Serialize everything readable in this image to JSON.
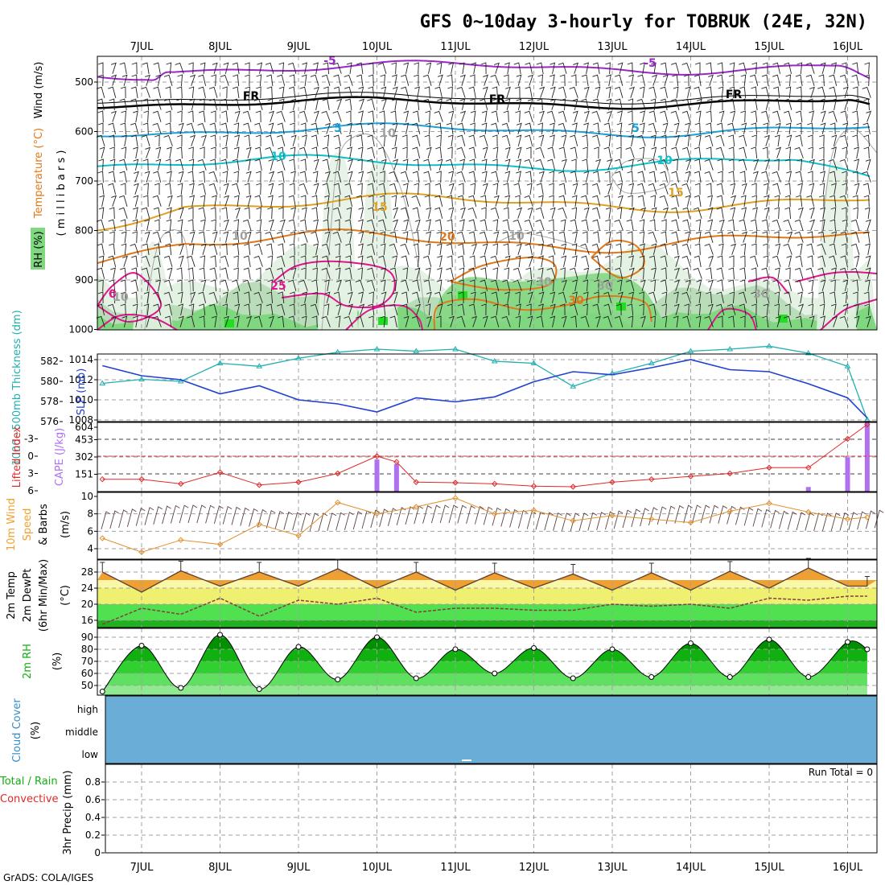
{
  "title": "GFS 0~10day 3-hourly for TOBRUK (24E, 32N)",
  "credit": "GrADS: COLA/IGES",
  "dates": [
    "7JUL",
    "8JUL",
    "9JUL",
    "10JUL",
    "11JUL",
    "12JUL",
    "13JUL",
    "14JUL",
    "15JUL",
    "16JUL"
  ],
  "colors": {
    "rh_light": "#e3f2e3",
    "rh_mid": "#b9ddb9",
    "rh_dark": "#7fd77f",
    "rh_vivid": "#22dd22",
    "temp_m5": "#9a28c8",
    "temp_fr": "#000000",
    "temp_5": "#1ca0d8",
    "temp_10": "#10c0c8",
    "temp_15": "#e0a020",
    "temp_20": "#e07818",
    "temp_25": "#e0148c",
    "thickness": "#20b0b0",
    "slp": "#2040d0",
    "lifted": "#e02828",
    "cape": "#b070f0",
    "wind": "#e09030",
    "temp2m": "#f0a030",
    "dewpt": "#804040",
    "rh2m": "#10b010",
    "cloud": "#6aaed8",
    "grid": "#a0a0a0"
  },
  "panels": {
    "upper": {
      "yaxis_label": "( m i l l i b a r s )",
      "side_rh": "RH (%)",
      "side_temp": "Temperature (°C)",
      "side_wind": "Wind (m/s)",
      "ticks": [
        "500",
        "600",
        "700",
        "800",
        "900",
        "1000"
      ],
      "contour_labels": [
        "-5",
        "-5",
        "FR",
        "FR",
        "FR",
        "5",
        "5",
        "10",
        "10",
        "15",
        "15",
        "20",
        "25",
        "30",
        "10",
        "10",
        "10",
        "30",
        "30",
        "30",
        "0",
        "10"
      ]
    },
    "thickness_slp": {
      "label_thickness": "1000~500mb Thickness (dm)",
      "label_slp": "SLP (mb)",
      "ticks_left": [
        "582",
        "580",
        "578",
        "576"
      ],
      "ticks_right": [
        "1014",
        "1012",
        "1010",
        "1008"
      ]
    },
    "cape_li": {
      "label_li": "Lifted Index",
      "label_cape": "CAPE (J/kg)",
      "ticks_left": [
        "-3",
        "0",
        "3",
        "6"
      ],
      "ticks_right": [
        "604",
        "453",
        "302",
        "151"
      ]
    },
    "wind10m": {
      "label_a": "10m Wind",
      "label_b": "Speed",
      "label_c": "& Barbs",
      "unit": "(m/s)",
      "ticks": [
        "10",
        "8",
        "6",
        "4"
      ]
    },
    "temp2m": {
      "label_a": "2m Temp",
      "label_b": "2m DewPt",
      "label_c": "(6hr Min/Max)",
      "unit": "(°C)",
      "ticks": [
        "28",
        "24",
        "20",
        "16"
      ]
    },
    "rh2m": {
      "label": "2m RH",
      "unit": "(%)",
      "ticks": [
        "90",
        "80",
        "70",
        "60",
        "50"
      ]
    },
    "cloud": {
      "label": "Cloud Cover",
      "unit": "(%)",
      "levels": [
        "high",
        "middle",
        "low"
      ]
    },
    "precip": {
      "label_a": "Total / Rain",
      "label_b": "Convective",
      "label_c": "3hr Precip (mm)",
      "run_total": "Run Total = 0",
      "ticks": [
        "0.8",
        "0.6",
        "0.4",
        "0.2",
        "0"
      ]
    }
  },
  "chart_data": [
    {
      "type": "line",
      "panel": "1000~500mb Thickness and SLP",
      "x": [
        "6JUL 12Z",
        "7JUL 00Z",
        "7JUL 12Z",
        "8JUL 00Z",
        "8JUL 12Z",
        "9JUL 00Z",
        "9JUL 12Z",
        "10JUL 00Z",
        "10JUL 12Z",
        "11JUL 00Z",
        "11JUL 12Z",
        "12JUL 00Z",
        "12JUL 12Z",
        "13JUL 00Z",
        "13JUL 12Z",
        "14JUL 00Z",
        "14JUL 12Z",
        "15JUL 00Z",
        "15JUL 12Z",
        "16JUL 00Z",
        "16JUL 06Z"
      ],
      "series": [
        {
          "name": "1000~500mb Thickness (dm)",
          "unit": "dm",
          "values": [
            579.8,
            580.2,
            580.0,
            581.8,
            581.5,
            582.3,
            582.9,
            583.2,
            583.0,
            583.2,
            582.0,
            581.8,
            579.5,
            580.8,
            581.8,
            583.0,
            583.2,
            583.5,
            582.8,
            581.5,
            576.2
          ]
        },
        {
          "name": "SLP (mb)",
          "unit": "mb",
          "values": [
            1013.4,
            1012.4,
            1012.0,
            1010.6,
            1011.4,
            1010.0,
            1009.6,
            1008.8,
            1010.2,
            1009.8,
            1010.3,
            1011.8,
            1012.8,
            1012.5,
            1013.2,
            1014.0,
            1013.0,
            1012.8,
            1011.6,
            1010.2,
            1008.2
          ]
        }
      ],
      "ylim_thickness": [
        576,
        583.5
      ],
      "ylim_slp": [
        1007.5,
        1014.5
      ]
    },
    {
      "type": "bar",
      "panel": "Lifted Index and CAPE",
      "x": [
        "6JUL 12Z",
        "7JUL 00Z",
        "7JUL 12Z",
        "8JUL 00Z",
        "8JUL 12Z",
        "9JUL 00Z",
        "9JUL 12Z",
        "10JUL 00Z",
        "10JUL 06Z",
        "10JUL 12Z",
        "11JUL 00Z",
        "11JUL 12Z",
        "12JUL 00Z",
        "12JUL 12Z",
        "13JUL 00Z",
        "13JUL 12Z",
        "14JUL 00Z",
        "14JUL 12Z",
        "15JUL 00Z",
        "15JUL 12Z",
        "16JUL 00Z",
        "16JUL 06Z"
      ],
      "series": [
        {
          "name": "Lifted Index",
          "values": [
            4.0,
            4.0,
            4.8,
            2.8,
            5.0,
            4.5,
            3.0,
            0.0,
            1.0,
            4.5,
            4.6,
            4.8,
            5.2,
            5.3,
            4.5,
            4.0,
            3.5,
            3.0,
            2.0,
            2.0,
            -3.0,
            -5.5
          ]
        },
        {
          "name": "CAPE (J/kg)",
          "values": [
            0,
            0,
            0,
            0,
            0,
            0,
            0,
            280,
            240,
            0,
            0,
            0,
            0,
            0,
            0,
            0,
            0,
            0,
            0,
            40,
            300,
            600
          ]
        }
      ],
      "ylim_li": [
        6,
        -6
      ],
      "ylim_cape": [
        0,
        604
      ]
    },
    {
      "type": "line",
      "panel": "10m Wind Speed & Barbs",
      "x": [
        "6JUL 12Z",
        "7JUL 00Z",
        "7JUL 12Z",
        "8JUL 00Z",
        "8JUL 12Z",
        "9JUL 00Z",
        "9JUL 12Z",
        "10JUL 00Z",
        "10JUL 12Z",
        "11JUL 00Z",
        "11JUL 12Z",
        "12JUL 00Z",
        "12JUL 12Z",
        "13JUL 00Z",
        "13JUL 12Z",
        "14JUL 00Z",
        "14JUL 12Z",
        "15JUL 00Z",
        "15JUL 12Z",
        "16JUL 00Z",
        "16JUL 06Z"
      ],
      "series": [
        {
          "name": "10m Wind Speed (m/s)",
          "values": [
            5.2,
            3.6,
            5.0,
            4.5,
            6.8,
            5.5,
            9.3,
            8.0,
            8.8,
            9.8,
            8.0,
            8.4,
            7.2,
            7.8,
            7.4,
            7.0,
            8.3,
            9.2,
            8.2,
            7.4,
            7.6
          ]
        }
      ],
      "ylim": [
        3,
        10
      ]
    },
    {
      "type": "area",
      "panel": "2m Temp, 2m DewPt (6hr Min/Max)",
      "x": [
        "6JUL 12Z",
        "7JUL 00Z",
        "7JUL 12Z",
        "8JUL 00Z",
        "8JUL 12Z",
        "9JUL 00Z",
        "9JUL 12Z",
        "10JUL 00Z",
        "10JUL 12Z",
        "11JUL 00Z",
        "11JUL 12Z",
        "12JUL 00Z",
        "12JUL 12Z",
        "13JUL 00Z",
        "13JUL 12Z",
        "14JUL 00Z",
        "14JUL 12Z",
        "15JUL 00Z",
        "15JUL 12Z",
        "16JUL 00Z",
        "16JUL 06Z"
      ],
      "series": [
        {
          "name": "2m Temp (°C)",
          "values": [
            28.0,
            23.0,
            28.3,
            24.5,
            28.0,
            24.5,
            28.8,
            24.0,
            28.0,
            23.5,
            27.8,
            24.0,
            27.5,
            23.5,
            27.8,
            23.5,
            28.2,
            24.0,
            29.0,
            24.5,
            24.5
          ]
        },
        {
          "name": "2m DewPt (°C)",
          "values": [
            15.0,
            19.0,
            17.5,
            21.5,
            17.0,
            21.0,
            20.0,
            21.5,
            18.0,
            19.0,
            19.0,
            18.5,
            18.5,
            20.0,
            19.5,
            20.0,
            19.0,
            21.5,
            21.0,
            22.0,
            22.0
          ]
        }
      ],
      "ylim": [
        14.5,
        30
      ]
    },
    {
      "type": "area",
      "panel": "2m RH",
      "x": [
        "6JUL 12Z",
        "7JUL 00Z",
        "7JUL 12Z",
        "8JUL 00Z",
        "8JUL 12Z",
        "9JUL 00Z",
        "9JUL 12Z",
        "10JUL 00Z",
        "10JUL 12Z",
        "11JUL 00Z",
        "11JUL 12Z",
        "12JUL 00Z",
        "12JUL 12Z",
        "13JUL 00Z",
        "13JUL 12Z",
        "14JUL 00Z",
        "14JUL 12Z",
        "15JUL 00Z",
        "15JUL 12Z",
        "16JUL 00Z",
        "16JUL 06Z"
      ],
      "series": [
        {
          "name": "2m RH (%)",
          "values": [
            45,
            83,
            48,
            92,
            47,
            82,
            55,
            90,
            56,
            80,
            60,
            81,
            56,
            80,
            57,
            85,
            57,
            88,
            57,
            86,
            80
          ]
        }
      ],
      "ylim": [
        40,
        95
      ]
    },
    {
      "type": "bar",
      "panel": "3hr Precip",
      "series": [
        {
          "name": "3hr Precip (mm)",
          "values": []
        }
      ],
      "ylim": [
        0,
        1
      ]
    }
  ]
}
